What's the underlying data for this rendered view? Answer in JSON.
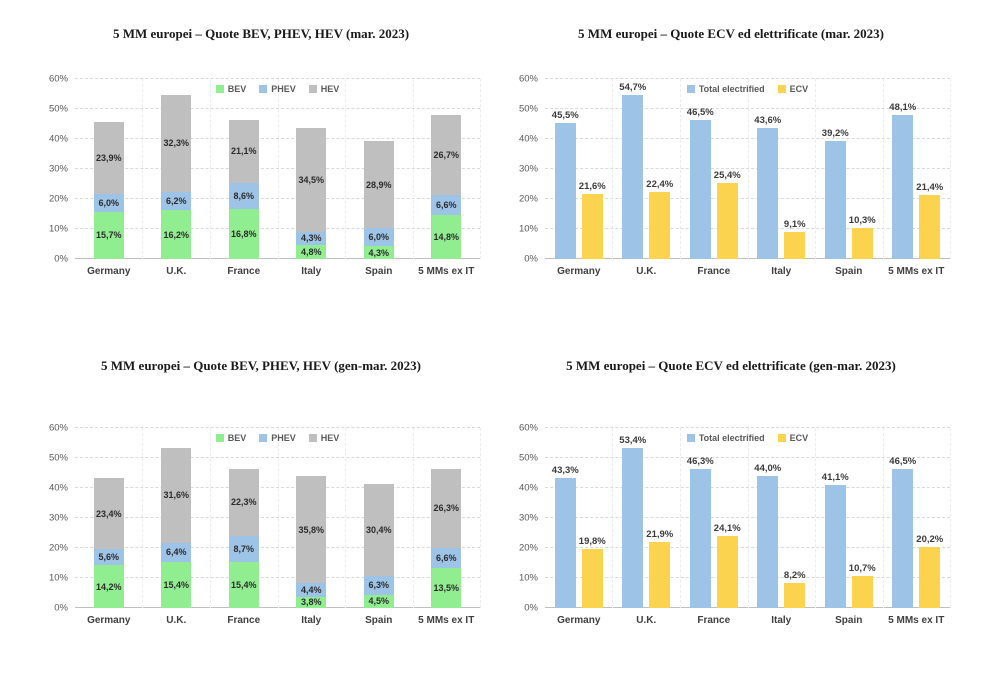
{
  "style": {
    "background": "#ffffff",
    "gridline_color": "#d9d9d9",
    "axis_line_color": "#bfbfbf",
    "axis_text_color": "#595959",
    "value_label_color": "#2b2b2b",
    "category_label_color": "#404040",
    "title_color": "#1a1a1a"
  },
  "chart_data": [
    {
      "type": "bar",
      "variant": "stacked",
      "title": "5 MM europei – Quote BEV, PHEV, HEV (mar. 2023)",
      "categories": [
        "Germany",
        "U.K.",
        "France",
        "Italy",
        "Spain",
        "5 MMs ex IT"
      ],
      "series": [
        {
          "name": "BEV",
          "color": "#90ee90",
          "values": [
            15.7,
            16.2,
            16.8,
            4.8,
            4.3,
            14.8
          ]
        },
        {
          "name": "PHEV",
          "color": "#9dc3e6",
          "values": [
            6.0,
            6.2,
            8.6,
            4.3,
            6.0,
            6.6
          ]
        },
        {
          "name": "HEV",
          "color": "#bfbfbf",
          "values": [
            23.9,
            32.3,
            21.1,
            34.5,
            28.9,
            26.7
          ]
        }
      ],
      "ylim": [
        0,
        60
      ],
      "yticks": [
        "0%",
        "10%",
        "20%",
        "30%",
        "40%",
        "50%",
        "60%"
      ],
      "grid": true,
      "legend_position": "top-center",
      "value_label_format": "decimal-comma-percent"
    },
    {
      "type": "bar",
      "variant": "grouped",
      "title": "5 MM europei – Quote ECV ed elettrificate (mar. 2023)",
      "categories": [
        "Germany",
        "U.K.",
        "France",
        "Italy",
        "Spain",
        "5 MMs ex IT"
      ],
      "series": [
        {
          "name": "Total electrified",
          "color": "#9dc3e6",
          "values": [
            45.5,
            54.7,
            46.5,
            43.6,
            39.2,
            48.1
          ]
        },
        {
          "name": "ECV",
          "color": "#fcd34f",
          "values": [
            21.6,
            22.4,
            25.4,
            9.1,
            10.3,
            21.4
          ]
        }
      ],
      "ylim": [
        0,
        60
      ],
      "yticks": [
        "0%",
        "10%",
        "20%",
        "30%",
        "40%",
        "50%",
        "60%"
      ],
      "grid": true,
      "legend_position": "top-center",
      "value_label_format": "decimal-comma-percent"
    },
    {
      "type": "bar",
      "variant": "stacked",
      "title": "5 MM europei – Quote BEV, PHEV, HEV (gen-mar. 2023)",
      "categories": [
        "Germany",
        "U.K.",
        "France",
        "Italy",
        "Spain",
        "5 MMs ex IT"
      ],
      "series": [
        {
          "name": "BEV",
          "color": "#90ee90",
          "values": [
            14.2,
            15.4,
            15.4,
            3.8,
            4.5,
            13.5
          ]
        },
        {
          "name": "PHEV",
          "color": "#9dc3e6",
          "values": [
            5.6,
            6.4,
            8.7,
            4.4,
            6.3,
            6.6
          ]
        },
        {
          "name": "HEV",
          "color": "#bfbfbf",
          "values": [
            23.4,
            31.6,
            22.3,
            35.8,
            30.4,
            26.3
          ]
        }
      ],
      "ylim": [
        0,
        60
      ],
      "yticks": [
        "0%",
        "10%",
        "20%",
        "30%",
        "40%",
        "50%",
        "60%"
      ],
      "grid": true,
      "legend_position": "top-center",
      "value_label_format": "decimal-comma-percent"
    },
    {
      "type": "bar",
      "variant": "grouped",
      "title": "5 MM europei – Quote ECV ed elettrificate (gen-mar. 2023)",
      "categories": [
        "Germany",
        "U.K.",
        "France",
        "Italy",
        "Spain",
        "5 MMs ex IT"
      ],
      "series": [
        {
          "name": "Total electrified",
          "color": "#9dc3e6",
          "values": [
            43.3,
            53.4,
            46.3,
            44.0,
            41.1,
            46.5
          ]
        },
        {
          "name": "ECV",
          "color": "#fcd34f",
          "values": [
            19.8,
            21.9,
            24.1,
            8.2,
            10.7,
            20.2
          ]
        }
      ],
      "ylim": [
        0,
        60
      ],
      "yticks": [
        "0%",
        "10%",
        "20%",
        "30%",
        "40%",
        "50%",
        "60%"
      ],
      "grid": true,
      "legend_position": "top-center",
      "value_label_format": "decimal-comma-percent"
    }
  ]
}
